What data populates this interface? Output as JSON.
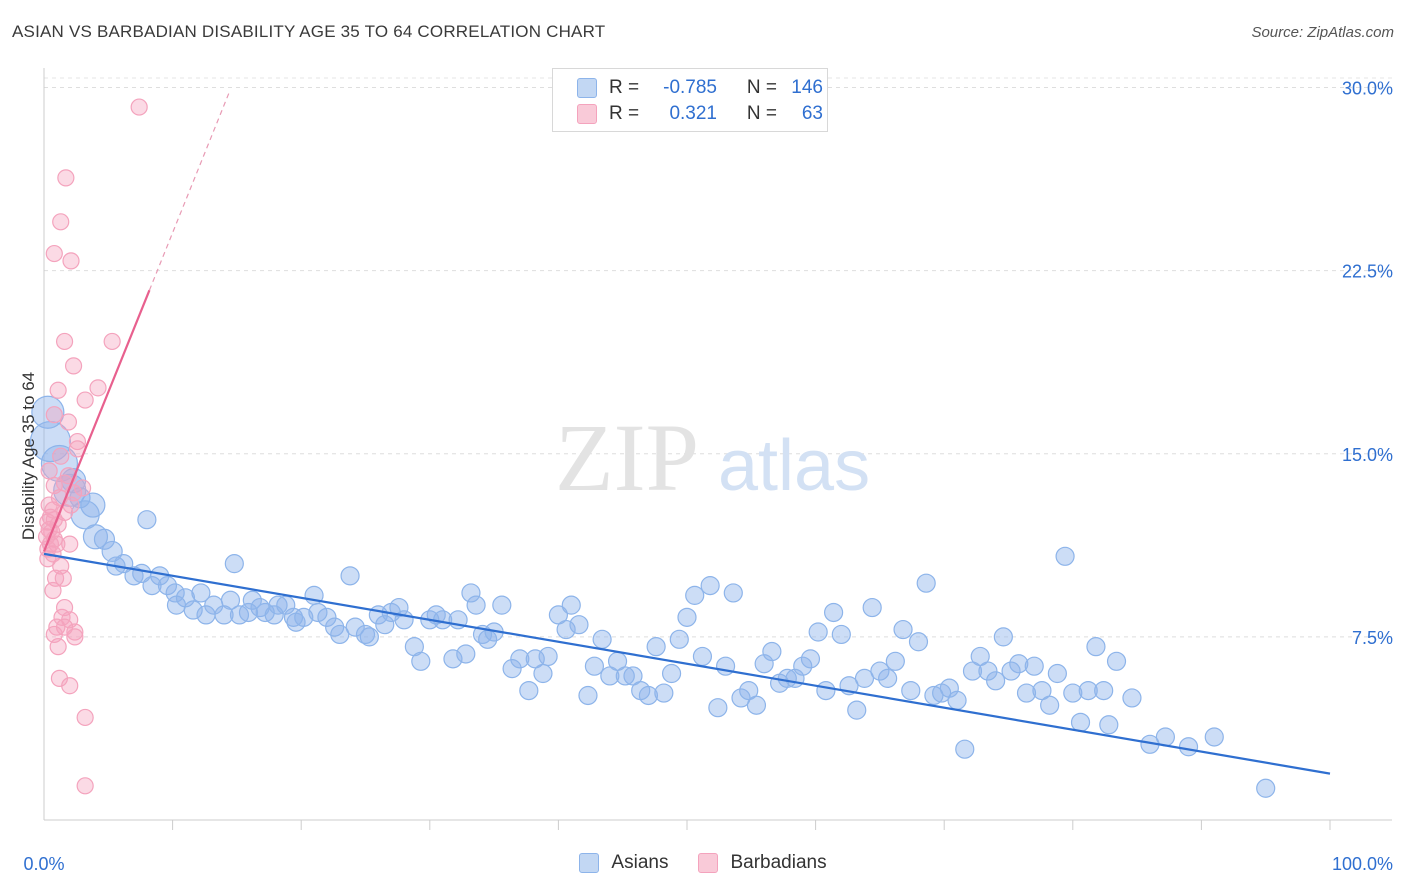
{
  "title": "ASIAN VS BARBADIAN DISABILITY AGE 35 TO 64 CORRELATION CHART",
  "source": "Source: ZipAtlas.com",
  "watermark": {
    "zip": "ZIP",
    "atlas": "atlas"
  },
  "legend": {
    "rows": [
      {
        "r_label": "R =",
        "r_value": "-0.785",
        "n_label": "N =",
        "n_value": "146",
        "color": "#8db4ea"
      },
      {
        "r_label": "R =",
        "r_value": "0.321",
        "n_label": "N =",
        "n_value": "63",
        "color": "#f4a3bd"
      }
    ]
  },
  "chart_data": {
    "type": "scatter",
    "title": "ASIAN VS BARBADIAN DISABILITY AGE 35 TO 64 CORRELATION CHART",
    "xlabel": "",
    "ylabel": "Disability Age 35 to 64",
    "xlim": [
      0,
      100
    ],
    "ylim": [
      0,
      30.8
    ],
    "x_tick_labels": [
      "0.0%",
      "100.0%"
    ],
    "y_ticks": [
      7.5,
      15.0,
      22.5,
      30.0
    ],
    "y_tick_labels": [
      "7.5%",
      "15.0%",
      "22.5%",
      "30.0%"
    ],
    "grid": "horizontal dashed",
    "legend_position": "top-center and bottom",
    "series": [
      {
        "name": "Asians",
        "color": "#8db4ea",
        "line_color": "#2f6fd0",
        "trend": {
          "x": [
            0,
            100
          ],
          "y": [
            10.9,
            1.9
          ]
        },
        "points": [
          [
            0.3,
            16.7,
            16
          ],
          [
            0.5,
            15.5,
            20
          ],
          [
            1.2,
            14.6,
            18
          ],
          [
            2.0,
            13.5,
            16
          ],
          [
            2.3,
            13.9,
            12
          ],
          [
            2.8,
            13.2,
            10
          ],
          [
            3.2,
            12.5,
            14
          ],
          [
            3.8,
            12.9,
            12
          ],
          [
            4.0,
            11.6,
            12
          ],
          [
            4.7,
            11.5,
            10
          ],
          [
            5.3,
            11.0,
            10
          ],
          [
            5.6,
            10.4,
            9
          ],
          [
            6.2,
            10.5,
            9
          ],
          [
            7.0,
            10.0,
            9
          ],
          [
            7.6,
            10.1,
            9
          ],
          [
            8.0,
            12.3,
            9
          ],
          [
            8.4,
            9.6,
            9
          ],
          [
            9.0,
            10.0,
            9
          ],
          [
            9.6,
            9.6,
            9
          ],
          [
            10.2,
            9.3,
            9
          ],
          [
            10.3,
            8.8,
            9
          ],
          [
            11.0,
            9.1,
            9
          ],
          [
            11.6,
            8.6,
            9
          ],
          [
            12.2,
            9.3,
            9
          ],
          [
            12.6,
            8.4,
            9
          ],
          [
            13.2,
            8.8,
            9
          ],
          [
            14.0,
            8.4,
            9
          ],
          [
            14.5,
            9.0,
            9
          ],
          [
            14.8,
            10.5,
            9
          ],
          [
            15.2,
            8.4,
            9
          ],
          [
            15.9,
            8.5,
            9
          ],
          [
            16.2,
            9.0,
            9
          ],
          [
            16.8,
            8.7,
            9
          ],
          [
            17.2,
            8.5,
            9
          ],
          [
            17.9,
            8.4,
            9
          ],
          [
            18.2,
            8.8,
            9
          ],
          [
            18.8,
            8.8,
            9
          ],
          [
            19.4,
            8.3,
            9
          ],
          [
            19.6,
            8.1,
            9
          ],
          [
            20.2,
            8.3,
            9
          ],
          [
            21.0,
            9.2,
            9
          ],
          [
            21.3,
            8.5,
            9
          ],
          [
            22.0,
            8.3,
            9
          ],
          [
            22.6,
            7.9,
            9
          ],
          [
            23.0,
            7.6,
            9
          ],
          [
            23.8,
            10.0,
            9
          ],
          [
            24.2,
            7.9,
            9
          ],
          [
            25.0,
            7.6,
            9
          ],
          [
            25.3,
            7.5,
            9
          ],
          [
            26.0,
            8.4,
            9
          ],
          [
            26.5,
            8.0,
            9
          ],
          [
            27.0,
            8.5,
            9
          ],
          [
            27.6,
            8.7,
            9
          ],
          [
            28.0,
            8.2,
            9
          ],
          [
            28.8,
            7.1,
            9
          ],
          [
            29.3,
            6.5,
            9
          ],
          [
            30.0,
            8.2,
            9
          ],
          [
            30.5,
            8.4,
            9
          ],
          [
            31.0,
            8.2,
            9
          ],
          [
            31.8,
            6.6,
            9
          ],
          [
            32.2,
            8.2,
            9
          ],
          [
            32.8,
            6.8,
            9
          ],
          [
            33.2,
            9.3,
            9
          ],
          [
            33.6,
            8.8,
            9
          ],
          [
            34.1,
            7.6,
            9
          ],
          [
            34.5,
            7.4,
            9
          ],
          [
            35.0,
            7.7,
            9
          ],
          [
            35.6,
            8.8,
            9
          ],
          [
            36.4,
            6.2,
            9
          ],
          [
            37.0,
            6.6,
            9
          ],
          [
            37.7,
            5.3,
            9
          ],
          [
            38.2,
            6.6,
            9
          ],
          [
            38.8,
            6.0,
            9
          ],
          [
            39.2,
            6.7,
            9
          ],
          [
            40.0,
            8.4,
            9
          ],
          [
            40.6,
            7.8,
            9
          ],
          [
            41.0,
            8.8,
            9
          ],
          [
            41.6,
            8.0,
            9
          ],
          [
            42.3,
            5.1,
            9
          ],
          [
            42.8,
            6.3,
            9
          ],
          [
            43.4,
            7.4,
            9
          ],
          [
            44.0,
            5.9,
            9
          ],
          [
            44.6,
            6.5,
            9
          ],
          [
            45.2,
            5.9,
            9
          ],
          [
            45.8,
            5.9,
            9
          ],
          [
            46.4,
            5.3,
            9
          ],
          [
            47.0,
            5.1,
            9
          ],
          [
            47.6,
            7.1,
            9
          ],
          [
            48.2,
            5.2,
            9
          ],
          [
            48.8,
            6.0,
            9
          ],
          [
            49.4,
            7.4,
            9
          ],
          [
            50.0,
            8.3,
            9
          ],
          [
            50.6,
            9.2,
            9
          ],
          [
            51.2,
            6.7,
            9
          ],
          [
            51.8,
            9.6,
            9
          ],
          [
            52.4,
            4.6,
            9
          ],
          [
            53.0,
            6.3,
            9
          ],
          [
            53.6,
            9.3,
            9
          ],
          [
            54.2,
            5.0,
            9
          ],
          [
            54.8,
            5.3,
            9
          ],
          [
            55.4,
            4.7,
            9
          ],
          [
            56.0,
            6.4,
            9
          ],
          [
            56.6,
            6.9,
            9
          ],
          [
            57.2,
            5.6,
            9
          ],
          [
            57.8,
            5.8,
            9
          ],
          [
            58.4,
            5.8,
            9
          ],
          [
            59.0,
            6.3,
            9
          ],
          [
            59.6,
            6.6,
            9
          ],
          [
            60.2,
            7.7,
            9
          ],
          [
            60.8,
            5.3,
            9
          ],
          [
            61.4,
            8.5,
            9
          ],
          [
            62.0,
            7.6,
            9
          ],
          [
            62.6,
            5.5,
            9
          ],
          [
            63.2,
            4.5,
            9
          ],
          [
            63.8,
            5.8,
            9
          ],
          [
            64.4,
            8.7,
            9
          ],
          [
            65.0,
            6.1,
            9
          ],
          [
            65.6,
            5.8,
            9
          ],
          [
            66.2,
            6.5,
            9
          ],
          [
            66.8,
            7.8,
            9
          ],
          [
            67.4,
            5.3,
            9
          ],
          [
            68.0,
            7.3,
            9
          ],
          [
            68.6,
            9.7,
            9
          ],
          [
            69.2,
            5.1,
            9
          ],
          [
            69.8,
            5.2,
            9
          ],
          [
            70.4,
            5.4,
            9
          ],
          [
            71.0,
            4.9,
            9
          ],
          [
            71.6,
            2.9,
            9
          ],
          [
            72.2,
            6.1,
            9
          ],
          [
            72.8,
            6.7,
            9
          ],
          [
            73.4,
            6.1,
            9
          ],
          [
            74.0,
            5.7,
            9
          ],
          [
            74.6,
            7.5,
            9
          ],
          [
            75.2,
            6.1,
            9
          ],
          [
            75.8,
            6.4,
            9
          ],
          [
            76.4,
            5.2,
            9
          ],
          [
            77.0,
            6.3,
            9
          ],
          [
            77.6,
            5.3,
            9
          ],
          [
            78.2,
            4.7,
            9
          ],
          [
            78.8,
            6.0,
            9
          ],
          [
            79.4,
            10.8,
            9
          ],
          [
            80.0,
            5.2,
            9
          ],
          [
            80.6,
            4.0,
            9
          ],
          [
            81.2,
            5.3,
            9
          ],
          [
            81.8,
            7.1,
            9
          ],
          [
            82.4,
            5.3,
            9
          ],
          [
            82.8,
            3.9,
            9
          ],
          [
            83.4,
            6.5,
            9
          ],
          [
            84.6,
            5.0,
            9
          ],
          [
            86.0,
            3.1,
            9
          ],
          [
            87.2,
            3.4,
            9
          ],
          [
            89.0,
            3.0,
            9
          ],
          [
            91.0,
            3.4,
            9
          ],
          [
            95.0,
            1.3,
            9
          ]
        ]
      },
      {
        "name": "Barbadians",
        "color": "#f4a3bd",
        "line_color": "#e8608e",
        "trend": {
          "x": [
            0,
            8.2
          ],
          "y": [
            11.0,
            21.7
          ]
        },
        "trend_dashed": {
          "x": [
            8.2,
            14.4
          ],
          "y": [
            21.7,
            29.8
          ]
        },
        "points": [
          [
            7.4,
            29.2,
            8
          ],
          [
            1.7,
            26.3,
            8
          ],
          [
            1.3,
            24.5,
            8
          ],
          [
            0.8,
            23.2,
            8
          ],
          [
            2.1,
            22.9,
            8
          ],
          [
            1.6,
            19.6,
            8
          ],
          [
            5.3,
            19.6,
            8
          ],
          [
            2.3,
            18.6,
            8
          ],
          [
            4.2,
            17.7,
            8
          ],
          [
            1.1,
            17.6,
            8
          ],
          [
            3.2,
            17.2,
            8
          ],
          [
            0.8,
            16.6,
            8
          ],
          [
            1.9,
            16.3,
            8
          ],
          [
            2.6,
            15.5,
            8
          ],
          [
            2.6,
            15.2,
            8
          ],
          [
            1.3,
            14.9,
            8
          ],
          [
            0.4,
            14.3,
            8
          ],
          [
            1.9,
            14.1,
            8
          ],
          [
            1.6,
            13.8,
            8
          ],
          [
            3.0,
            13.6,
            8
          ],
          [
            2.3,
            13.4,
            8
          ],
          [
            0.8,
            13.7,
            8
          ],
          [
            0.4,
            12.9,
            8
          ],
          [
            1.2,
            13.2,
            8
          ],
          [
            2.1,
            12.9,
            8
          ],
          [
            0.7,
            12.7,
            8
          ],
          [
            1.6,
            12.6,
            8
          ],
          [
            0.5,
            12.4,
            8
          ],
          [
            0.3,
            12.2,
            8
          ],
          [
            0.8,
            12.3,
            8
          ],
          [
            1.1,
            12.1,
            8
          ],
          [
            0.4,
            11.9,
            8
          ],
          [
            0.6,
            11.8,
            8
          ],
          [
            0.2,
            11.6,
            8
          ],
          [
            0.8,
            11.5,
            8
          ],
          [
            0.5,
            11.3,
            8
          ],
          [
            1.0,
            11.3,
            8
          ],
          [
            2.0,
            11.3,
            8
          ],
          [
            0.3,
            11.1,
            8
          ],
          [
            0.7,
            10.9,
            8
          ],
          [
            0.3,
            10.7,
            8
          ],
          [
            1.3,
            10.4,
            8
          ],
          [
            1.5,
            9.9,
            8
          ],
          [
            0.9,
            9.9,
            8
          ],
          [
            0.7,
            9.4,
            8
          ],
          [
            1.6,
            8.7,
            8
          ],
          [
            1.4,
            8.3,
            8
          ],
          [
            2.0,
            8.2,
            8
          ],
          [
            1.0,
            7.9,
            8
          ],
          [
            1.6,
            7.9,
            8
          ],
          [
            2.4,
            7.7,
            8
          ],
          [
            0.8,
            7.6,
            8
          ],
          [
            2.4,
            7.5,
            8
          ],
          [
            1.1,
            7.1,
            8
          ],
          [
            1.2,
            5.8,
            8
          ],
          [
            2.0,
            5.5,
            8
          ],
          [
            3.2,
            4.2,
            8
          ],
          [
            3.2,
            1.4,
            8
          ]
        ]
      }
    ]
  }
}
